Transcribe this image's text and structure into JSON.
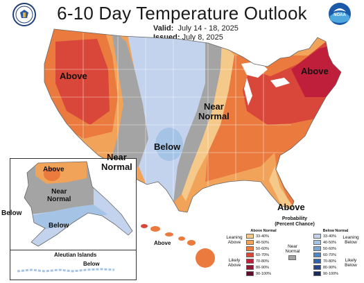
{
  "header": {
    "title": "6-10 Day Temperature Outlook",
    "valid_label": "Valid:",
    "valid_value": "July 14 - 18, 2025",
    "issued_label": "Issued:",
    "issued_value": "July 8, 2025",
    "noaa_text": "NOAA"
  },
  "map_labels": {
    "above_west": "Above",
    "above_northeast": "Above",
    "above_southeast": "Above",
    "near_normal_west_1": "Near",
    "near_normal_west_2": "Normal",
    "near_normal_central_1": "Near",
    "near_normal_central_2": "Normal",
    "below_central": "Below",
    "alaska_above": "Above",
    "alaska_near_1": "Near",
    "alaska_near_2": "Normal",
    "alaska_below": "Below",
    "alaska_below_outside": "Below",
    "hawaii_above": "Above",
    "aleutian_title": "Aleutian Islands",
    "aleutian_below": "Below"
  },
  "legend": {
    "title_line1": "Probability",
    "title_line2": "(Percent Chance)",
    "above_header": "Above Normal",
    "below_header": "Below Normal",
    "near_label_1": "Near",
    "near_label_2": "Normal",
    "leaning_above_1": "Leaning",
    "leaning_above_2": "Above",
    "likely_above_1": "Likely",
    "likely_above_2": "Above",
    "leaning_below_1": "Leaning",
    "leaning_below_2": "Below",
    "likely_below_1": "Likely",
    "likely_below_2": "Below",
    "above_bins": [
      "33-40%",
      "40-50%",
      "50-60%",
      "60-70%",
      "70-80%",
      "80-90%",
      "90-100%"
    ],
    "below_bins": [
      "33-40%",
      "40-50%",
      "50-60%",
      "60-70%",
      "70-80%",
      "80-90%",
      "90-100%"
    ],
    "above_colors": [
      "#f5c98a",
      "#f2a35a",
      "#ea7a3e",
      "#d9473a",
      "#bf1f3b",
      "#8e1733",
      "#5e0f27"
    ],
    "below_colors": [
      "#c3d3ed",
      "#a4c3e5",
      "#78a9da",
      "#4c86c7",
      "#2f63ad",
      "#25438a",
      "#1b2a5c"
    ],
    "near_color": "#a4a4a4"
  }
}
